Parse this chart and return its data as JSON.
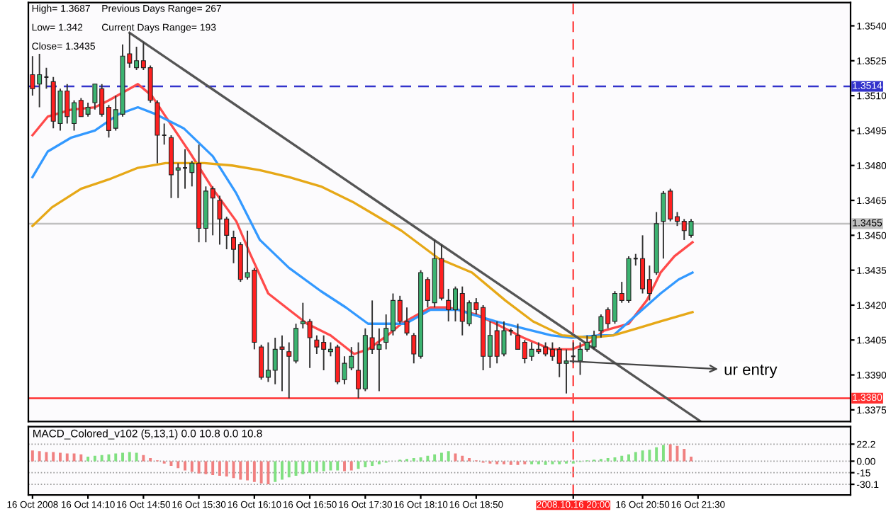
{
  "chart_data": [
    {
      "type": "candlestick",
      "x": [
        "2008-10-16T13:30",
        "2008-10-16T13:35",
        "2008-10-16T13:40",
        "2008-10-16T13:45",
        "2008-10-16T13:50",
        "2008-10-16T13:55",
        "2008-10-16T14:00",
        "2008-10-16T14:05",
        "2008-10-16T14:10",
        "2008-10-16T14:15",
        "2008-10-16T14:20",
        "2008-10-16T14:25",
        "2008-10-16T14:30",
        "2008-10-16T14:35",
        "2008-10-16T14:40",
        "2008-10-16T14:45",
        "2008-10-16T14:50",
        "2008-10-16T14:55",
        "2008-10-16T15:00",
        "2008-10-16T15:05",
        "2008-10-16T15:10",
        "2008-10-16T15:15",
        "2008-10-16T15:20",
        "2008-10-16T15:25",
        "2008-10-16T15:30",
        "2008-10-16T15:35",
        "2008-10-16T15:40",
        "2008-10-16T15:45",
        "2008-10-16T15:50",
        "2008-10-16T15:55",
        "2008-10-16T16:00",
        "2008-10-16T16:05",
        "2008-10-16T16:10",
        "2008-10-16T16:15",
        "2008-10-16T16:20",
        "2008-10-16T16:25",
        "2008-10-16T16:30",
        "2008-10-16T16:35",
        "2008-10-16T16:40",
        "2008-10-16T16:45",
        "2008-10-16T16:50",
        "2008-10-16T16:55",
        "2008-10-16T17:00",
        "2008-10-16T17:05",
        "2008-10-16T17:10",
        "2008-10-16T17:15",
        "2008-10-16T17:20",
        "2008-10-16T17:25",
        "2008-10-16T17:30",
        "2008-10-16T17:35",
        "2008-10-16T17:40",
        "2008-10-16T17:45",
        "2008-10-16T17:50",
        "2008-10-16T17:55",
        "2008-10-16T18:00",
        "2008-10-16T18:05",
        "2008-10-16T18:10",
        "2008-10-16T18:15",
        "2008-10-16T18:20",
        "2008-10-16T18:25",
        "2008-10-16T18:30",
        "2008-10-16T18:35",
        "2008-10-16T18:40",
        "2008-10-16T18:45",
        "2008-10-16T18:50",
        "2008-10-16T18:55",
        "2008-10-16T19:00",
        "2008-10-16T19:05",
        "2008-10-16T19:10",
        "2008-10-16T19:15",
        "2008-10-16T19:20",
        "2008-10-16T19:25",
        "2008-10-16T19:30",
        "2008-10-16T19:35",
        "2008-10-16T19:40",
        "2008-10-16T19:45",
        "2008-10-16T19:50",
        "2008-10-16T19:55",
        "2008-10-16T20:00",
        "2008-10-16T20:05",
        "2008-10-16T20:10",
        "2008-10-16T20:15",
        "2008-10-16T20:20",
        "2008-10-16T20:25",
        "2008-10-16T20:30",
        "2008-10-16T20:35",
        "2008-10-16T20:40",
        "2008-10-16T20:45",
        "2008-10-16T20:50",
        "2008-10-16T20:55",
        "2008-10-16T21:00",
        "2008-10-16T21:05",
        "2008-10-16T21:10",
        "2008-10-16T21:15",
        "2008-10-16T21:20",
        "2008-10-16T21:25"
      ],
      "ohlc": [
        [
          1.3519,
          1.3527,
          1.351,
          1.3513
        ],
        [
          1.3515,
          1.3528,
          1.3505,
          1.3519
        ],
        [
          1.3518,
          1.3522,
          1.3513,
          1.3518
        ],
        [
          1.3516,
          1.3518,
          1.3496,
          1.3499
        ],
        [
          1.3498,
          1.3513,
          1.3495,
          1.3512
        ],
        [
          1.3512,
          1.3515,
          1.3498,
          1.3501
        ],
        [
          1.3498,
          1.3508,
          1.3495,
          1.3507
        ],
        [
          1.3508,
          1.3509,
          1.3501,
          1.3501
        ],
        [
          1.3502,
          1.3507,
          1.3501,
          1.3505
        ],
        [
          1.3507,
          1.3515,
          1.3504,
          1.3515
        ],
        [
          1.3513,
          1.3515,
          1.3501,
          1.3502
        ],
        [
          1.3505,
          1.3506,
          1.3492,
          1.3495
        ],
        [
          1.3496,
          1.351,
          1.3495,
          1.3504
        ],
        [
          1.3502,
          1.3532,
          1.3501,
          1.3527
        ],
        [
          1.3528,
          1.3537,
          1.3522,
          1.3524
        ],
        [
          1.3522,
          1.3531,
          1.3521,
          1.3525
        ],
        [
          1.3525,
          1.3533,
          1.3521,
          1.3522
        ],
        [
          1.3522,
          1.3523,
          1.3507,
          1.3508
        ],
        [
          1.3507,
          1.3508,
          1.3481,
          1.3493
        ],
        [
          1.3493,
          1.3498,
          1.3489,
          1.3493
        ],
        [
          1.3492,
          1.3493,
          1.3466,
          1.3476
        ],
        [
          1.3478,
          1.3481,
          1.3466,
          1.3479
        ],
        [
          1.3479,
          1.3487,
          1.347,
          1.3479
        ],
        [
          1.3477,
          1.3482,
          1.3471,
          1.3481
        ],
        [
          1.3481,
          1.3489,
          1.3447,
          1.3453
        ],
        [
          1.3453,
          1.3471,
          1.3447,
          1.3469
        ],
        [
          1.347,
          1.3471,
          1.345,
          1.3466
        ],
        [
          1.3465,
          1.3467,
          1.3446,
          1.3457
        ],
        [
          1.3457,
          1.3458,
          1.3444,
          1.345
        ],
        [
          1.3449,
          1.3452,
          1.3438,
          1.3444
        ],
        [
          1.3446,
          1.3447,
          1.343,
          1.3431
        ],
        [
          1.3432,
          1.3452,
          1.3431,
          1.3434
        ],
        [
          1.3435,
          1.3436,
          1.3401,
          1.3404
        ],
        [
          1.3402,
          1.3403,
          1.3388,
          1.3389
        ],
        [
          1.3389,
          1.3404,
          1.3387,
          1.3392
        ],
        [
          1.3392,
          1.3406,
          1.3386,
          1.3401
        ],
        [
          1.3402,
          1.3407,
          1.3383,
          1.3401
        ],
        [
          1.34,
          1.3404,
          1.338,
          1.3398
        ],
        [
          1.3396,
          1.3412,
          1.3395,
          1.341
        ],
        [
          1.3412,
          1.3421,
          1.341,
          1.3413
        ],
        [
          1.3413,
          1.3414,
          1.3393,
          1.3406
        ],
        [
          1.3405,
          1.3407,
          1.3399,
          1.3402
        ],
        [
          1.3404,
          1.3407,
          1.3392,
          1.3401
        ],
        [
          1.34,
          1.3404,
          1.3398,
          1.3401
        ],
        [
          1.3402,
          1.3403,
          1.3386,
          1.3387
        ],
        [
          1.3388,
          1.3398,
          1.3386,
          1.3395
        ],
        [
          1.3393,
          1.3402,
          1.3392,
          1.3398
        ],
        [
          1.3392,
          1.3404,
          1.338,
          1.3384
        ],
        [
          1.3384,
          1.341,
          1.3383,
          1.3407
        ],
        [
          1.3406,
          1.3422,
          1.3399,
          1.3401
        ],
        [
          1.3401,
          1.341,
          1.3383,
          1.3403
        ],
        [
          1.3404,
          1.3416,
          1.3401,
          1.341
        ],
        [
          1.3409,
          1.3425,
          1.3407,
          1.3422
        ],
        [
          1.3422,
          1.3424,
          1.3412,
          1.3413
        ],
        [
          1.3413,
          1.3419,
          1.3407,
          1.3408
        ],
        [
          1.3407,
          1.3408,
          1.3395,
          1.3399
        ],
        [
          1.3398,
          1.3435,
          1.3397,
          1.3434
        ],
        [
          1.3431,
          1.3432,
          1.3419,
          1.3422
        ],
        [
          1.3421,
          1.3448,
          1.3419,
          1.344
        ],
        [
          1.344,
          1.3446,
          1.3422,
          1.3423
        ],
        [
          1.3422,
          1.3427,
          1.3413,
          1.3418
        ],
        [
          1.3418,
          1.3428,
          1.3413,
          1.3427
        ],
        [
          1.3425,
          1.3428,
          1.3407,
          1.3413
        ],
        [
          1.3412,
          1.3422,
          1.3411,
          1.3421
        ],
        [
          1.3421,
          1.3423,
          1.3416,
          1.3418
        ],
        [
          1.3419,
          1.342,
          1.3392,
          1.3398
        ],
        [
          1.3398,
          1.3413,
          1.3393,
          1.3407
        ],
        [
          1.3409,
          1.3413,
          1.3395,
          1.3398
        ],
        [
          1.3399,
          1.3413,
          1.3398,
          1.3409
        ],
        [
          1.3409,
          1.341,
          1.3407,
          1.3409
        ],
        [
          1.3407,
          1.3412,
          1.3401,
          1.3401
        ],
        [
          1.3404,
          1.3405,
          1.3395,
          1.3397
        ],
        [
          1.3398,
          1.3404,
          1.3396,
          1.3401
        ],
        [
          1.3401,
          1.3404,
          1.3399,
          1.34
        ],
        [
          1.3402,
          1.3404,
          1.3398,
          1.3399
        ],
        [
          1.3401,
          1.3404,
          1.3396,
          1.3398
        ],
        [
          1.3401,
          1.3402,
          1.3389,
          1.3395
        ],
        [
          1.3395,
          1.3401,
          1.3382,
          1.3396
        ],
        [
          1.3398,
          1.3404,
          1.3395,
          1.3398
        ],
        [
          1.3396,
          1.3404,
          1.339,
          1.3401
        ],
        [
          1.3401,
          1.3407,
          1.34,
          1.3404
        ],
        [
          1.3402,
          1.3409,
          1.3401,
          1.3407
        ],
        [
          1.3409,
          1.3416,
          1.3406,
          1.3415
        ],
        [
          1.3418,
          1.3419,
          1.341,
          1.3412
        ],
        [
          1.3413,
          1.3426,
          1.3412,
          1.3425
        ],
        [
          1.3425,
          1.343,
          1.3421,
          1.3422
        ],
        [
          1.3422,
          1.3441,
          1.3421,
          1.344
        ],
        [
          1.344,
          1.3442,
          1.3437,
          1.344
        ],
        [
          1.344,
          1.345,
          1.3425,
          1.3427
        ],
        [
          1.3431,
          1.3437,
          1.3422,
          1.3425
        ],
        [
          1.3434,
          1.346,
          1.3433,
          1.3455
        ],
        [
          1.3456,
          1.3469,
          1.344,
          1.3468
        ],
        [
          1.3469,
          1.347,
          1.3456,
          1.3457
        ],
        [
          1.3458,
          1.346,
          1.3454,
          1.3456
        ],
        [
          1.3456,
          1.3457,
          1.3448,
          1.3452
        ],
        [
          1.345,
          1.3457,
          1.3449,
          1.3456
        ]
      ],
      "series": [
        {
          "type": "line",
          "color": "#ff4a4a",
          "x": [
            "2008-10-16T13:30",
            "2008-10-16T13:41",
            "2008-10-16T13:58",
            "2008-10-16T14:15",
            "2008-10-16T14:25",
            "2008-10-16T14:46",
            "2008-10-16T14:56",
            "2008-10-16T15:06",
            "2008-10-16T15:23",
            "2008-10-16T15:40",
            "2008-10-16T15:57",
            "2008-10-16T16:07",
            "2008-10-16T16:20",
            "2008-10-16T16:35",
            "2008-10-16T16:48",
            "2008-10-16T17:05",
            "2008-10-16T17:22",
            "2008-10-16T17:32",
            "2008-10-16T17:46",
            "2008-10-16T17:56",
            "2008-10-16T18:17",
            "2008-10-16T18:30",
            "2008-10-16T18:50",
            "2008-10-16T19:04",
            "2008-10-16T19:24",
            "2008-10-16T19:44",
            "2008-10-16T19:59",
            "2008-10-16T20:12",
            "2008-10-16T20:22",
            "2008-10-16T20:40",
            "2008-10-16T20:53",
            "2008-10-16T21:03",
            "2008-10-16T21:13",
            "2008-10-16T21:26"
          ],
          "values": [
            1.3493,
            1.3501,
            1.3504,
            1.3505,
            1.3508,
            1.3515,
            1.351,
            1.3501,
            1.3486,
            1.347,
            1.3456,
            1.3442,
            1.3425,
            1.3418,
            1.3412,
            1.3407,
            1.3399,
            1.3401,
            1.3407,
            1.3412,
            1.3419,
            1.3419,
            1.3416,
            1.3412,
            1.3406,
            1.3401,
            1.3401,
            1.3404,
            1.3409,
            1.3412,
            1.3422,
            1.3434,
            1.3441,
            1.3447
          ]
        },
        {
          "type": "line",
          "color": "#3399ff",
          "x": [
            "2008-10-16T13:30",
            "2008-10-16T13:41",
            "2008-10-16T13:58",
            "2008-10-16T14:15",
            "2008-10-16T14:32",
            "2008-10-16T14:46",
            "2008-10-16T14:59",
            "2008-10-16T15:19",
            "2008-10-16T15:40",
            "2008-10-16T15:57",
            "2008-10-16T16:14",
            "2008-10-16T16:35",
            "2008-10-16T16:58",
            "2008-10-16T17:16",
            "2008-10-16T17:32",
            "2008-10-16T17:46",
            "2008-10-16T17:59",
            "2008-10-16T18:17",
            "2008-10-16T18:37",
            "2008-10-16T18:47",
            "2008-10-16T19:04",
            "2008-10-16T19:24",
            "2008-10-16T19:44",
            "2008-10-16T19:59",
            "2008-10-16T20:19",
            "2008-10-16T20:29",
            "2008-10-16T20:46",
            "2008-10-16T21:03",
            "2008-10-16T21:16",
            "2008-10-16T21:26"
          ],
          "values": [
            1.3475,
            1.3486,
            1.3492,
            1.3495,
            1.3502,
            1.3505,
            1.3502,
            1.3496,
            1.3484,
            1.3468,
            1.3448,
            1.3436,
            1.3426,
            1.3419,
            1.3412,
            1.3412,
            1.3412,
            1.3418,
            1.3418,
            1.3416,
            1.3413,
            1.341,
            1.3407,
            1.3406,
            1.3407,
            1.3407,
            1.3416,
            1.3425,
            1.3431,
            1.3434
          ]
        },
        {
          "type": "line",
          "color": "#e6a817",
          "x": [
            "2008-10-16T13:30",
            "2008-10-16T13:44",
            "2008-10-16T14:05",
            "2008-10-16T14:25",
            "2008-10-16T14:46",
            "2008-10-16T15:06",
            "2008-10-16T15:34",
            "2008-10-16T15:54",
            "2008-10-16T16:14",
            "2008-10-16T16:35",
            "2008-10-16T16:58",
            "2008-10-16T17:22",
            "2008-10-16T17:56",
            "2008-10-16T18:23",
            "2008-10-16T18:47",
            "2008-10-16T19:11",
            "2008-10-16T19:31",
            "2008-10-16T19:52",
            "2008-10-16T20:12",
            "2008-10-16T20:29",
            "2008-10-16T20:46",
            "2008-10-16T21:03",
            "2008-10-16T21:26"
          ],
          "values": [
            1.3454,
            1.3462,
            1.347,
            1.3474,
            1.3479,
            1.3481,
            1.3481,
            1.348,
            1.3478,
            1.3475,
            1.3471,
            1.3464,
            1.3452,
            1.344,
            1.3434,
            1.3422,
            1.3413,
            1.3407,
            1.3406,
            1.3407,
            1.341,
            1.3413,
            1.3417
          ]
        },
        {
          "type": "line",
          "color": "#555555",
          "x": [
            "2008-10-16T14:40",
            "2008-10-16T21:32"
          ],
          "values": [
            1.3537,
            1.337
          ]
        }
      ],
      "xlim": [
        "2008-10-16T13:27",
        "2008-10-16T23:20"
      ],
      "ylim": [
        1.337,
        1.355
      ],
      "yticks": [
        1.3375,
        {
          "value": 1.339,
          "label": "1.3390"
        },
        1.3405,
        {
          "value": 1.342,
          "label": "1.3420"
        },
        1.3435,
        {
          "value": 1.345,
          "label": "1.3450"
        },
        1.3465,
        {
          "value": 1.348,
          "label": "1.3480"
        },
        1.3495,
        {
          "value": 1.351,
          "label": "1.3510"
        },
        1.3525,
        {
          "value": 1.354,
          "label": "1.3540"
        }
      ],
      "tick_labels": "y",
      "annotations": [
        "High= 1.3687",
        "Previous Days Range= 267",
        "Low= 1.342",
        "Current Days Range= 193",
        "Close= 1.3435",
        {
          "text": "ur entry",
          "x": "2008-10-16T19:55",
          "y": 1.3396
        }
      ],
      "ref_lines": [
        {
          "axis": "y",
          "value": 1.3514,
          "label": "1.3514",
          "color": "#3333cc",
          "line_style": "dashed"
        },
        {
          "axis": "y",
          "value": 1.338,
          "label": "1.3380",
          "color": "#ff3030",
          "line_style": "solid"
        },
        {
          "axis": "y",
          "value": 1.3455,
          "label": "1.3455",
          "color": "#c0c0c0",
          "line_style": "solid"
        },
        {
          "axis": "x",
          "value": "2008-10-16T20:00",
          "color": "#ff5050",
          "line_style": "dashed"
        }
      ]
    },
    {
      "type": "bar",
      "title": "MACD_Colored_v102 (5,13,1) 0.0 10.8 0.0 10.8",
      "x": [
        "2008-10-16T13:30",
        "2008-10-16T13:35",
        "2008-10-16T13:40",
        "2008-10-16T13:45",
        "2008-10-16T13:50",
        "2008-10-16T13:55",
        "2008-10-16T14:00",
        "2008-10-16T14:05",
        "2008-10-16T14:10",
        "2008-10-16T14:15",
        "2008-10-16T14:20",
        "2008-10-16T14:25",
        "2008-10-16T14:30",
        "2008-10-16T14:35",
        "2008-10-16T14:40",
        "2008-10-16T14:45",
        "2008-10-16T14:50",
        "2008-10-16T14:55",
        "2008-10-16T15:00",
        "2008-10-16T15:05",
        "2008-10-16T15:10",
        "2008-10-16T15:15",
        "2008-10-16T15:20",
        "2008-10-16T15:25",
        "2008-10-16T15:30",
        "2008-10-16T15:35",
        "2008-10-16T15:40",
        "2008-10-16T15:45",
        "2008-10-16T15:50",
        "2008-10-16T15:55",
        "2008-10-16T16:00",
        "2008-10-16T16:05",
        "2008-10-16T16:10",
        "2008-10-16T16:15",
        "2008-10-16T16:20",
        "2008-10-16T16:25",
        "2008-10-16T16:30",
        "2008-10-16T16:35",
        "2008-10-16T16:40",
        "2008-10-16T16:45",
        "2008-10-16T16:50",
        "2008-10-16T16:55",
        "2008-10-16T17:00",
        "2008-10-16T17:05",
        "2008-10-16T17:10",
        "2008-10-16T17:15",
        "2008-10-16T17:20",
        "2008-10-16T17:25",
        "2008-10-16T17:30",
        "2008-10-16T17:35",
        "2008-10-16T17:40",
        "2008-10-16T17:45",
        "2008-10-16T17:50",
        "2008-10-16T17:55",
        "2008-10-16T18:00",
        "2008-10-16T18:05",
        "2008-10-16T18:10",
        "2008-10-16T18:15",
        "2008-10-16T18:20",
        "2008-10-16T18:25",
        "2008-10-16T18:30",
        "2008-10-16T18:35",
        "2008-10-16T18:40",
        "2008-10-16T18:45",
        "2008-10-16T18:50",
        "2008-10-16T18:55",
        "2008-10-16T19:00",
        "2008-10-16T19:05",
        "2008-10-16T19:10",
        "2008-10-16T19:15",
        "2008-10-16T19:20",
        "2008-10-16T19:25",
        "2008-10-16T19:30",
        "2008-10-16T19:35",
        "2008-10-16T19:40",
        "2008-10-16T19:45",
        "2008-10-16T19:50",
        "2008-10-16T19:55",
        "2008-10-16T20:00",
        "2008-10-16T20:05",
        "2008-10-16T20:10",
        "2008-10-16T20:15",
        "2008-10-16T20:20",
        "2008-10-16T20:25",
        "2008-10-16T20:30",
        "2008-10-16T20:35",
        "2008-10-16T20:40",
        "2008-10-16T20:45",
        "2008-10-16T20:50",
        "2008-10-16T20:55",
        "2008-10-16T21:00",
        "2008-10-16T21:05",
        "2008-10-16T21:10",
        "2008-10-16T21:15",
        "2008-10-16T21:20",
        "2008-10-16T21:25"
      ],
      "values": [
        14,
        13,
        12,
        12,
        11,
        10,
        10,
        9,
        6,
        7,
        8,
        9,
        10,
        11,
        12,
        11,
        8,
        4,
        1,
        -3,
        -6,
        -9,
        -12,
        -14,
        -16,
        -17,
        -18,
        -19,
        -20,
        -22,
        -24,
        -25,
        -27,
        -29,
        -30,
        -27,
        -24,
        -21,
        -19,
        -17,
        -15,
        -14,
        -13,
        -12,
        -12,
        -13,
        -12,
        -10,
        -8,
        -6,
        -4,
        -2,
        0,
        2,
        3,
        4,
        5,
        7,
        9,
        11,
        13,
        10,
        7,
        4,
        1,
        -2,
        -3,
        -4,
        -4,
        -5,
        -5,
        -4,
        -4,
        -4,
        -5,
        -4,
        -4,
        -3,
        -3,
        -1,
        1,
        2,
        3,
        4,
        5,
        7,
        9,
        12,
        14,
        15,
        18,
        21,
        22,
        20,
        16,
        6
      ],
      "colors": [
        "#f08080",
        "#f08080",
        "#f08080",
        "#f08080",
        "#f08080",
        "#f08080",
        "#f08080",
        "#f08080",
        "#80e080",
        "#80e080",
        "#80e080",
        "#80e080",
        "#80e080",
        "#80e080",
        "#80e080",
        "#80e080",
        "#f08080",
        "#f08080",
        "#f08080",
        "#f08080",
        "#f08080",
        "#f08080",
        "#f08080",
        "#f08080",
        "#f08080",
        "#f08080",
        "#f08080",
        "#f08080",
        "#f08080",
        "#f08080",
        "#f08080",
        "#f08080",
        "#f08080",
        "#f08080",
        "#f08080",
        "#80e080",
        "#80e080",
        "#80e080",
        "#80e080",
        "#80e080",
        "#80e080",
        "#80e080",
        "#80e080",
        "#80e080",
        "#80e080",
        "#f08080",
        "#f08080",
        "#80e080",
        "#80e080",
        "#80e080",
        "#80e080",
        "#80e080",
        "#80e080",
        "#80e080",
        "#80e080",
        "#80e080",
        "#80e080",
        "#80e080",
        "#80e080",
        "#80e080",
        "#80e080",
        "#f08080",
        "#f08080",
        "#f08080",
        "#f08080",
        "#f08080",
        "#f08080",
        "#f08080",
        "#f08080",
        "#f08080",
        "#f08080",
        "#f08080",
        "#80e080",
        "#80e080",
        "#80e080",
        "#80e080",
        "#80e080",
        "#80e080",
        "#80e080",
        "#80e080",
        "#80e080",
        "#80e080",
        "#80e080",
        "#80e080",
        "#80e080",
        "#80e080",
        "#80e080",
        "#80e080",
        "#80e080",
        "#80e080",
        "#80e080",
        "#80e080",
        "#f08080",
        "#f08080",
        "#f08080",
        "#f08080"
      ],
      "xlim": [
        "2008-10-16T13:27",
        "2008-10-16T23:20"
      ],
      "ylim": [
        -44,
        45
      ],
      "yticks": [
        22.2,
        {
          "value": 0,
          "label": "0.00"
        },
        -15,
        -30.1
      ],
      "xticks": [
        {
          "value": "2008-10-16T13:30",
          "label": "16 Oct 2008"
        },
        {
          "value": "2008-10-16T14:10",
          "label": "16 Oct 14:10"
        },
        {
          "value": "2008-10-16T14:50",
          "label": "16 Oct 14:50"
        },
        {
          "value": "2008-10-16T15:30",
          "label": "16 Oct 15:30"
        },
        {
          "value": "2008-10-16T16:10",
          "label": "16 Oct 16:10"
        },
        {
          "value": "2008-10-16T16:50",
          "label": "16 Oct 16:50"
        },
        {
          "value": "2008-10-16T17:30",
          "label": "16 Oct 17:30"
        },
        {
          "value": "2008-10-16T18:10",
          "label": "16 Oct 18:10"
        },
        {
          "value": "2008-10-16T18:50",
          "label": "16 Oct 18:50"
        },
        {
          "value": "2008-10-16T20:00",
          "label": "2008.10.16 20:00"
        },
        {
          "value": "2008-10-16T20:50",
          "label": "16 Oct 20:50"
        },
        {
          "value": "2008-10-16T21:30",
          "label": "16 Oct 21:30"
        }
      ],
      "grid": "y",
      "ref_lines": [
        {
          "axis": "x",
          "value": "2008-10-16T20:00",
          "color": "#ff5050",
          "line_style": "dashed"
        }
      ]
    }
  ]
}
